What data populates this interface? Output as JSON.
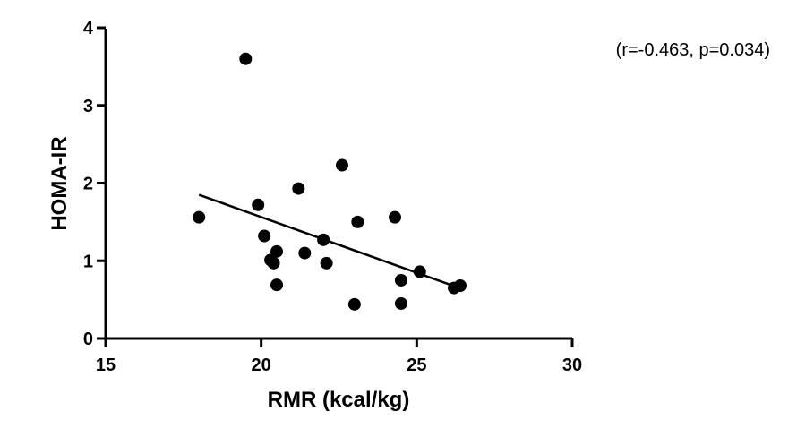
{
  "chart_data": {
    "type": "scatter",
    "title": "",
    "xlabel": "RMR (kcal/kg)",
    "ylabel": "HOMA-IR",
    "xlim": [
      15,
      30
    ],
    "ylim": [
      0,
      4
    ],
    "x_ticks": [
      15,
      20,
      25,
      30
    ],
    "y_ticks": [
      0,
      1,
      2,
      3,
      4
    ],
    "grid": false,
    "annotation": "(r=-0.463, p=0.034)",
    "points": [
      {
        "x": 18.0,
        "y": 1.56
      },
      {
        "x": 19.5,
        "y": 3.6
      },
      {
        "x": 19.9,
        "y": 1.72
      },
      {
        "x": 20.1,
        "y": 1.32
      },
      {
        "x": 20.3,
        "y": 1.01
      },
      {
        "x": 20.4,
        "y": 0.97
      },
      {
        "x": 20.5,
        "y": 1.12
      },
      {
        "x": 20.5,
        "y": 0.69
      },
      {
        "x": 21.2,
        "y": 1.93
      },
      {
        "x": 21.4,
        "y": 1.1
      },
      {
        "x": 22.0,
        "y": 1.27
      },
      {
        "x": 22.1,
        "y": 0.97
      },
      {
        "x": 22.6,
        "y": 2.23
      },
      {
        "x": 23.0,
        "y": 0.44
      },
      {
        "x": 23.1,
        "y": 1.5
      },
      {
        "x": 24.3,
        "y": 1.56
      },
      {
        "x": 24.5,
        "y": 0.75
      },
      {
        "x": 24.5,
        "y": 0.45
      },
      {
        "x": 25.1,
        "y": 0.86
      },
      {
        "x": 26.2,
        "y": 0.65
      },
      {
        "x": 26.4,
        "y": 0.68
      }
    ],
    "regression_line": {
      "x": [
        18.0,
        26.3
      ],
      "y": [
        1.85,
        0.66
      ]
    }
  }
}
